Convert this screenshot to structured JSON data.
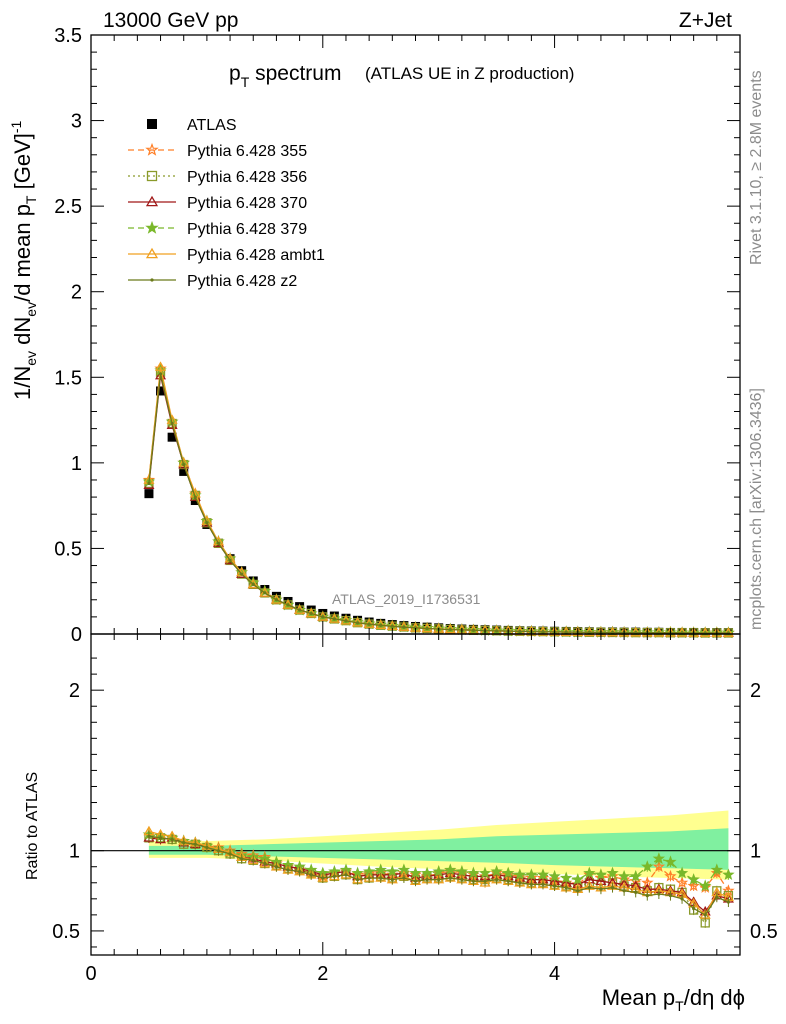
{
  "header": {
    "left": "13000 GeV pp",
    "right": "Z+Jet"
  },
  "title": {
    "main_base": "p",
    "main_sub": "T",
    "main_rest": " spectrum",
    "note": "(ATLAS UE in Z production)"
  },
  "side_labels": {
    "rivet": "Rivet 3.1.10, ≥ 2.8M events",
    "mcplots": "mcplots.cern.ch [arXiv:1306.3436]"
  },
  "analysis_label": "ATLAS_2019_I1736531",
  "top_ylabel": {
    "part1": "1/N",
    "sub1": "ev",
    "part2": " dN",
    "sub2": "ev",
    "part3": "/d mean p",
    "sub3": "T",
    "part4": " [GeV]",
    "sup": "-1"
  },
  "bottom_ylabel": "Ratio to ATLAS",
  "xlabel": {
    "part1": "Mean p",
    "sub": "T",
    "part2": "/dη dϕ"
  },
  "chart_data": [
    {
      "type": "scatter",
      "panel": "main",
      "xlim": [
        0,
        5.6
      ],
      "ylim": [
        0,
        3.5
      ],
      "x_ticks": [
        "0",
        "2",
        "4"
      ],
      "y_ticks": [
        "0",
        "0.5",
        "1",
        "1.5",
        "2",
        "2.5",
        "3",
        "3.5"
      ],
      "legend_position": "top-left",
      "x": [
        0.5,
        0.6,
        0.7,
        0.8,
        0.9,
        1.0,
        1.1,
        1.2,
        1.3,
        1.4,
        1.5,
        1.6,
        1.7,
        1.8,
        1.9,
        2.0,
        2.1,
        2.2,
        2.3,
        2.4,
        2.5,
        2.6,
        2.7,
        2.8,
        2.9,
        3.0,
        3.1,
        3.2,
        3.3,
        3.4,
        3.5,
        3.6,
        3.7,
        3.8,
        3.9,
        4.0,
        4.1,
        4.2,
        4.3,
        4.4,
        4.5,
        4.6,
        4.7,
        4.8,
        4.9,
        5.0,
        5.1,
        5.2,
        5.3,
        5.4,
        5.5
      ],
      "series": [
        {
          "name": "ATLAS",
          "color": "#000000",
          "marker": "square-filled",
          "line": "none",
          "values": [
            0.82,
            1.42,
            1.15,
            0.95,
            0.78,
            0.64,
            0.53,
            0.44,
            0.37,
            0.31,
            0.26,
            0.22,
            0.19,
            0.16,
            0.14,
            0.12,
            0.105,
            0.092,
            0.08,
            0.07,
            0.062,
            0.055,
            0.049,
            0.044,
            0.04,
            0.036,
            0.032,
            0.029,
            0.027,
            0.025,
            0.023,
            0.021,
            0.019,
            0.018,
            0.017,
            0.016,
            0.015,
            0.014,
            0.013,
            0.012,
            0.012,
            0.011,
            0.011,
            0.01,
            0.01,
            0.009,
            0.009,
            0.009,
            0.008,
            0.008,
            0.008
          ]
        },
        {
          "name": "Pythia 6.428 355",
          "color": "#ff7f27",
          "marker": "star-open",
          "line": "dashed",
          "values": [
            0.9,
            1.55,
            1.24,
            1.0,
            0.82,
            0.66,
            0.54,
            0.44,
            0.36,
            0.3,
            0.25,
            0.2,
            0.17,
            0.14,
            0.12,
            0.1,
            0.09,
            0.08,
            0.068,
            0.06,
            0.053,
            0.047,
            0.042,
            0.037,
            0.034,
            0.031,
            0.028,
            0.025,
            0.023,
            0.021,
            0.019,
            0.018,
            0.016,
            0.015,
            0.014,
            0.013,
            0.012,
            0.011,
            0.011,
            0.01,
            0.01,
            0.009,
            0.009,
            0.008,
            0.008,
            0.008,
            0.007,
            0.007,
            0.007,
            0.007,
            0.006
          ]
        },
        {
          "name": "Pythia 6.428 356",
          "color": "#8a9a2a",
          "marker": "square-open",
          "line": "dotted",
          "values": [
            0.88,
            1.53,
            1.23,
            0.99,
            0.81,
            0.65,
            0.53,
            0.43,
            0.35,
            0.29,
            0.24,
            0.2,
            0.17,
            0.14,
            0.12,
            0.1,
            0.088,
            0.078,
            0.066,
            0.058,
            0.051,
            0.046,
            0.041,
            0.036,
            0.033,
            0.03,
            0.027,
            0.024,
            0.022,
            0.021,
            0.019,
            0.017,
            0.016,
            0.015,
            0.014,
            0.013,
            0.012,
            0.011,
            0.01,
            0.01,
            0.009,
            0.009,
            0.008,
            0.008,
            0.008,
            0.007,
            0.007,
            0.007,
            0.006,
            0.006,
            0.006
          ]
        },
        {
          "name": "Pythia 6.428 370",
          "color": "#a01818",
          "marker": "triangle-open",
          "line": "solid",
          "values": [
            0.87,
            1.51,
            1.22,
            0.99,
            0.8,
            0.65,
            0.53,
            0.43,
            0.35,
            0.29,
            0.24,
            0.2,
            0.17,
            0.14,
            0.12,
            0.1,
            0.089,
            0.079,
            0.067,
            0.059,
            0.052,
            0.046,
            0.041,
            0.037,
            0.033,
            0.03,
            0.027,
            0.025,
            0.023,
            0.021,
            0.019,
            0.017,
            0.016,
            0.015,
            0.014,
            0.013,
            0.012,
            0.011,
            0.01,
            0.01,
            0.009,
            0.009,
            0.009,
            0.008,
            0.008,
            0.007,
            0.007,
            0.007,
            0.006,
            0.006,
            0.006
          ]
        },
        {
          "name": "Pythia 6.428 379",
          "color": "#7ab82a",
          "marker": "star-filled",
          "line": "dashed",
          "values": [
            0.89,
            1.54,
            1.24,
            1.0,
            0.81,
            0.66,
            0.54,
            0.44,
            0.36,
            0.3,
            0.25,
            0.2,
            0.17,
            0.14,
            0.12,
            0.1,
            0.09,
            0.08,
            0.068,
            0.06,
            0.053,
            0.047,
            0.042,
            0.038,
            0.034,
            0.031,
            0.028,
            0.025,
            0.023,
            0.021,
            0.019,
            0.018,
            0.016,
            0.015,
            0.014,
            0.013,
            0.012,
            0.011,
            0.011,
            0.01,
            0.01,
            0.009,
            0.009,
            0.009,
            0.008,
            0.008,
            0.007,
            0.007,
            0.007,
            0.007,
            0.007
          ]
        },
        {
          "name": "Pythia 6.428 ambt1",
          "color": "#f0a020",
          "marker": "triangle-open",
          "line": "solid",
          "values": [
            0.9,
            1.56,
            1.25,
            1.0,
            0.82,
            0.66,
            0.54,
            0.44,
            0.36,
            0.29,
            0.24,
            0.2,
            0.17,
            0.14,
            0.12,
            0.1,
            0.088,
            0.078,
            0.066,
            0.058,
            0.052,
            0.046,
            0.041,
            0.036,
            0.033,
            0.03,
            0.027,
            0.024,
            0.022,
            0.02,
            0.018,
            0.017,
            0.015,
            0.014,
            0.013,
            0.012,
            0.011,
            0.011,
            0.01,
            0.009,
            0.009,
            0.008,
            0.008,
            0.008,
            0.007,
            0.007,
            0.007,
            0.006,
            0.006,
            0.006,
            0.006
          ]
        },
        {
          "name": "Pythia 6.428 z2",
          "color": "#6b7a1a",
          "marker": "dot",
          "line": "solid",
          "values": [
            0.88,
            1.52,
            1.23,
            0.99,
            0.8,
            0.65,
            0.53,
            0.43,
            0.35,
            0.29,
            0.24,
            0.2,
            0.17,
            0.14,
            0.12,
            0.1,
            0.088,
            0.077,
            0.065,
            0.057,
            0.051,
            0.045,
            0.04,
            0.036,
            0.032,
            0.029,
            0.026,
            0.024,
            0.022,
            0.02,
            0.018,
            0.017,
            0.015,
            0.014,
            0.013,
            0.012,
            0.011,
            0.011,
            0.01,
            0.009,
            0.009,
            0.008,
            0.008,
            0.008,
            0.007,
            0.007,
            0.007,
            0.006,
            0.006,
            0.006,
            0.006
          ]
        }
      ]
    },
    {
      "type": "scatter",
      "panel": "ratio",
      "xlim": [
        0,
        5.6
      ],
      "ylim": [
        0.35,
        2.35
      ],
      "x_ticks": [
        "0",
        "2",
        "4"
      ],
      "y_ticks": [
        "0.5",
        "1",
        "2"
      ],
      "reference_line": 1.0,
      "uncertainty_band_inner": {
        "color": "#80f0a0",
        "x": [
          0.5,
          1.0,
          1.5,
          2.0,
          2.5,
          3.0,
          3.5,
          4.0,
          4.5,
          5.0,
          5.5
        ],
        "low": [
          0.975,
          0.975,
          0.965,
          0.955,
          0.945,
          0.935,
          0.925,
          0.91,
          0.9,
          0.89,
          0.88
        ],
        "high": [
          1.03,
          1.03,
          1.04,
          1.05,
          1.06,
          1.07,
          1.09,
          1.1,
          1.11,
          1.12,
          1.14
        ]
      },
      "uncertainty_band_outer": {
        "color": "#ffff90",
        "x": [
          0.5,
          1.0,
          1.5,
          2.0,
          2.5,
          3.0,
          3.5,
          4.0,
          4.5,
          5.0,
          5.5
        ],
        "low": [
          0.955,
          0.955,
          0.94,
          0.92,
          0.9,
          0.885,
          0.87,
          0.855,
          0.84,
          0.83,
          0.82
        ],
        "high": [
          1.06,
          1.06,
          1.07,
          1.09,
          1.11,
          1.13,
          1.16,
          1.18,
          1.2,
          1.22,
          1.25
        ]
      },
      "series": [
        {
          "name": "Pythia 6.428 355",
          "color": "#ff7f27",
          "values": [
            1.1,
            1.09,
            1.08,
            1.06,
            1.05,
            1.03,
            1.02,
            1.0,
            0.98,
            0.97,
            0.96,
            0.92,
            0.9,
            0.88,
            0.86,
            0.84,
            0.86,
            0.87,
            0.85,
            0.86,
            0.86,
            0.85,
            0.86,
            0.85,
            0.84,
            0.86,
            0.87,
            0.86,
            0.85,
            0.84,
            0.86,
            0.85,
            0.84,
            0.83,
            0.83,
            0.82,
            0.8,
            0.79,
            0.85,
            0.83,
            0.84,
            0.82,
            0.81,
            0.8,
            0.9,
            0.84,
            0.8,
            0.78,
            0.77,
            0.86,
            0.75
          ]
        },
        {
          "name": "Pythia 6.428 356",
          "color": "#8a9a2a",
          "values": [
            1.08,
            1.08,
            1.07,
            1.04,
            1.04,
            1.02,
            1.0,
            0.98,
            0.95,
            0.94,
            0.92,
            0.91,
            0.89,
            0.88,
            0.86,
            0.83,
            0.84,
            0.85,
            0.82,
            0.83,
            0.84,
            0.83,
            0.84,
            0.82,
            0.83,
            0.83,
            0.84,
            0.83,
            0.82,
            0.82,
            0.83,
            0.82,
            0.81,
            0.8,
            0.8,
            0.79,
            0.78,
            0.77,
            0.8,
            0.79,
            0.8,
            0.78,
            0.77,
            0.75,
            0.77,
            0.76,
            0.74,
            0.63,
            0.55,
            0.75,
            0.72
          ]
        },
        {
          "name": "Pythia 6.428 370",
          "color": "#a01818",
          "values": [
            1.08,
            1.07,
            1.08,
            1.05,
            1.04,
            1.03,
            1.01,
            0.99,
            0.96,
            0.95,
            0.93,
            0.92,
            0.9,
            0.89,
            0.87,
            0.85,
            0.86,
            0.87,
            0.84,
            0.85,
            0.85,
            0.85,
            0.86,
            0.83,
            0.84,
            0.85,
            0.86,
            0.85,
            0.84,
            0.84,
            0.85,
            0.84,
            0.83,
            0.82,
            0.82,
            0.81,
            0.8,
            0.79,
            0.82,
            0.81,
            0.8,
            0.79,
            0.78,
            0.76,
            0.76,
            0.75,
            0.74,
            0.68,
            0.62,
            0.72,
            0.7
          ]
        },
        {
          "name": "Pythia 6.428 379",
          "color": "#7ab82a",
          "values": [
            1.1,
            1.09,
            1.08,
            1.06,
            1.05,
            1.03,
            1.01,
            0.99,
            0.97,
            0.96,
            0.95,
            0.93,
            0.91,
            0.9,
            0.88,
            0.86,
            0.87,
            0.88,
            0.86,
            0.87,
            0.88,
            0.87,
            0.88,
            0.86,
            0.86,
            0.87,
            0.88,
            0.87,
            0.86,
            0.86,
            0.87,
            0.86,
            0.85,
            0.85,
            0.85,
            0.84,
            0.83,
            0.82,
            0.86,
            0.85,
            0.86,
            0.84,
            0.84,
            0.9,
            0.95,
            0.93,
            0.86,
            0.82,
            0.78,
            0.88,
            0.85
          ]
        },
        {
          "name": "Pythia 6.428 ambt1",
          "color": "#f0a020",
          "values": [
            1.12,
            1.1,
            1.09,
            1.06,
            1.05,
            1.03,
            1.01,
            0.99,
            0.96,
            0.94,
            0.92,
            0.9,
            0.88,
            0.87,
            0.85,
            0.83,
            0.84,
            0.85,
            0.82,
            0.83,
            0.83,
            0.82,
            0.84,
            0.81,
            0.82,
            0.82,
            0.83,
            0.82,
            0.81,
            0.8,
            0.82,
            0.81,
            0.8,
            0.79,
            0.79,
            0.78,
            0.77,
            0.76,
            0.78,
            0.77,
            0.78,
            0.77,
            0.76,
            0.74,
            0.75,
            0.74,
            0.73,
            0.67,
            0.6,
            0.74,
            0.71
          ]
        },
        {
          "name": "Pythia 6.428 z2",
          "color": "#6b7a1a",
          "values": [
            1.09,
            1.08,
            1.07,
            1.05,
            1.04,
            1.02,
            1.0,
            0.98,
            0.95,
            0.94,
            0.92,
            0.9,
            0.88,
            0.87,
            0.85,
            0.83,
            0.84,
            0.85,
            0.82,
            0.83,
            0.83,
            0.82,
            0.83,
            0.81,
            0.82,
            0.82,
            0.83,
            0.82,
            0.81,
            0.81,
            0.82,
            0.81,
            0.8,
            0.79,
            0.79,
            0.78,
            0.77,
            0.75,
            0.77,
            0.76,
            0.77,
            0.75,
            0.74,
            0.72,
            0.73,
            0.72,
            0.7,
            0.64,
            0.6,
            0.71,
            0.68
          ]
        }
      ]
    }
  ]
}
